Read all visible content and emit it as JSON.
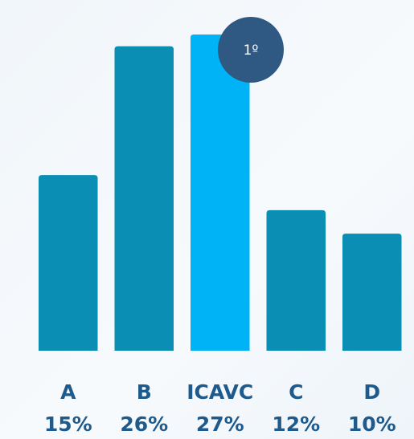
{
  "chart_data": {
    "type": "bar",
    "categories": [
      "A",
      "B",
      "ICAVC",
      "C",
      "D"
    ],
    "values": [
      15,
      26,
      27,
      12,
      10
    ],
    "value_labels": [
      "15%",
      "26%",
      "27%",
      "12%",
      "10%"
    ],
    "colors": [
      "#0a8eb3",
      "#0a8eb3",
      "#00b3f7",
      "#0a8eb3",
      "#0a8eb3"
    ],
    "annotation": "1º"
  }
}
